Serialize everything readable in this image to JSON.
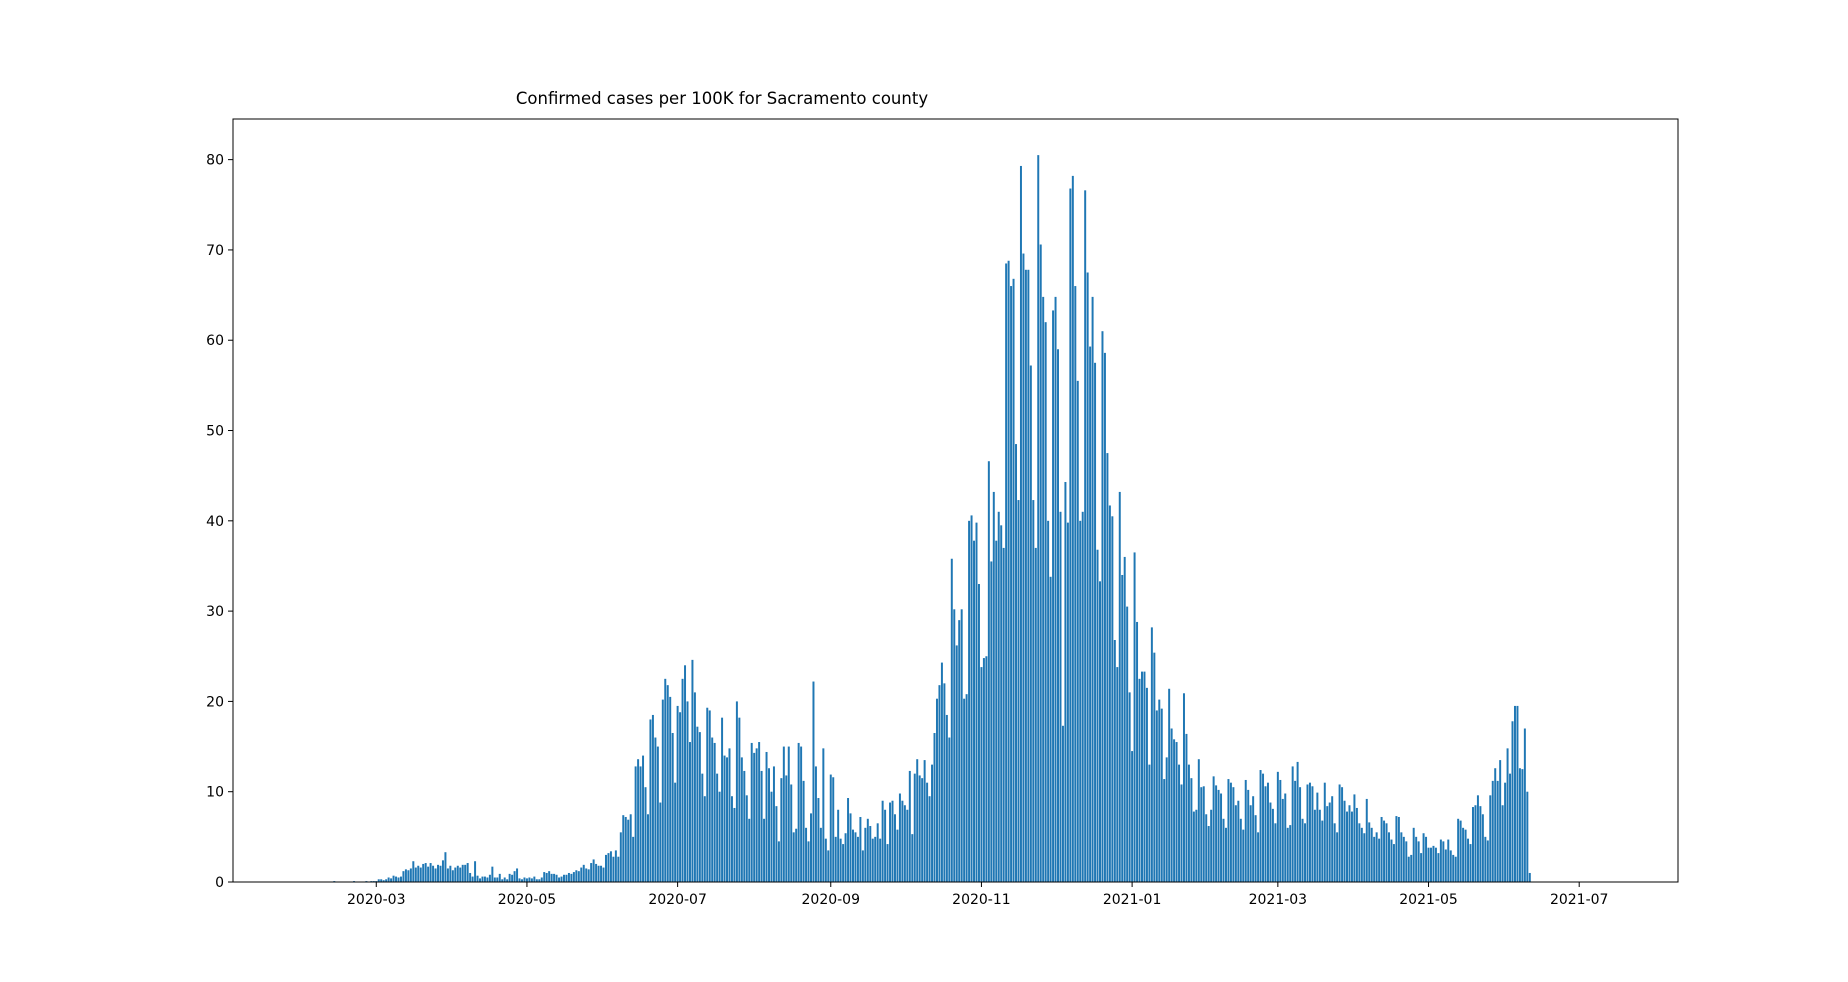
{
  "chart_data": {
    "type": "bar",
    "title": "Confirmed cases per 100K for Sacramento county",
    "xlabel": "",
    "ylabel": "",
    "x_start": "2020-01-22",
    "x_end": "2021-07-20",
    "xlim": [
      "2020-01-03",
      "2021-08-10"
    ],
    "ylim": [
      0,
      84.5
    ],
    "xticks": [
      "2020-03",
      "2020-05",
      "2020-07",
      "2020-09",
      "2020-11",
      "2021-01",
      "2021-03",
      "2021-05",
      "2021-07"
    ],
    "yticks": [
      0,
      10,
      20,
      30,
      40,
      50,
      60,
      70,
      80
    ],
    "bar_color": "#1f77b4",
    "grid": false,
    "legend": "none",
    "values": [
      0,
      0,
      0,
      0,
      0,
      0,
      0,
      0,
      0,
      0,
      0,
      0,
      0,
      0,
      0,
      0,
      0,
      0,
      0,
      0,
      0,
      0,
      0.1,
      0,
      0,
      0,
      0,
      0,
      0,
      0,
      0.1,
      0,
      0,
      0,
      0,
      0.1,
      0,
      0.1,
      0.1,
      0.1,
      0.3,
      0.3,
      0.2,
      0.3,
      0.5,
      0.4,
      0.7,
      0.6,
      0.5,
      0.6,
      1.2,
      1.4,
      1.3,
      1.5,
      2.3,
      1.6,
      1.8,
      1.6,
      2.0,
      2.1,
      1.7,
      2.1,
      1.8,
      1.5,
      1.9,
      1.8,
      2.4,
      3.3,
      1.5,
      1.8,
      1.3,
      1.6,
      1.8,
      1.6,
      1.9,
      1.9,
      2.1,
      1.0,
      0.6,
      2.3,
      0.7,
      0.4,
      0.6,
      0.6,
      0.5,
      0.8,
      1.7,
      0.5,
      0.5,
      0.9,
      0.3,
      0.5,
      0.3,
      0.9,
      0.8,
      1.2,
      1.5,
      0.4,
      0.3,
      0.5,
      0.4,
      0.5,
      0.4,
      0.6,
      0.3,
      0.3,
      0.5,
      1.1,
      1.0,
      1.2,
      0.9,
      0.9,
      0.8,
      0.5,
      0.6,
      0.8,
      0.8,
      1.0,
      0.9,
      1.1,
      1.3,
      1.2,
      1.6,
      1.9,
      1.5,
      1.4,
      2.1,
      2.5,
      2.0,
      1.8,
      1.8,
      1.6,
      3.0,
      3.2,
      3.4,
      2.8,
      3.5,
      2.8,
      5.5,
      7.4,
      7.2,
      6.9,
      7.5,
      5.0,
      12.8,
      13.6,
      12.8,
      14.0,
      10.5,
      7.5,
      18.0,
      18.5,
      16.0,
      15.0,
      8.8,
      20.2,
      22.5,
      21.8,
      20.5,
      16.5,
      11.0,
      19.5,
      18.8,
      22.5,
      24.0,
      20.0,
      15.5,
      24.6,
      21.0,
      17.2,
      16.6,
      12.0,
      9.5,
      19.3,
      19.0,
      16.0,
      15.4,
      12.0,
      10.0,
      18.2,
      14.0,
      13.8,
      14.8,
      9.5,
      8.2,
      20.0,
      18.2,
      13.8,
      12.3,
      9.6,
      7.0,
      15.4,
      14.3,
      14.8,
      15.5,
      12.3,
      7.0,
      14.4,
      12.6,
      10.0,
      12.8,
      8.4,
      4.5,
      11.5,
      15.0,
      11.8,
      15.0,
      10.8,
      5.5,
      5.9,
      15.4,
      15.0,
      11.2,
      6.0,
      4.5,
      7.6,
      22.2,
      12.8,
      9.3,
      6.0,
      14.8,
      4.8,
      3.5,
      11.9,
      11.6,
      5.0,
      8.0,
      4.8,
      4.2,
      5.4,
      9.3,
      7.6,
      5.8,
      5.5,
      5.0,
      7.2,
      3.5,
      6.0,
      7.0,
      6.2,
      4.8,
      5.0,
      6.5,
      4.8,
      9.0,
      8.0,
      4.2,
      8.8,
      9.0,
      7.5,
      5.8,
      9.8,
      9.0,
      8.5,
      8.0,
      12.3,
      5.3,
      12.0,
      13.6,
      11.8,
      11.5,
      13.5,
      11.0,
      9.5,
      13.0,
      16.5,
      20.3,
      21.8,
      24.3,
      22.0,
      18.5,
      16.0,
      35.8,
      30.2,
      26.2,
      29.0,
      30.2,
      20.3,
      20.8,
      40.0,
      40.6,
      37.8,
      39.8,
      33.0,
      23.8,
      24.8,
      25.0,
      46.6,
      35.5,
      43.2,
      37.8,
      41.0,
      39.5,
      37.0,
      68.5,
      68.8,
      66.0,
      66.8,
      48.5,
      42.3,
      79.3,
      69.6,
      67.8,
      67.8,
      57.2,
      42.3,
      37.0,
      80.5,
      70.6,
      64.8,
      62.0,
      40.0,
      33.8,
      63.3,
      64.8,
      59.0,
      41.0,
      17.3,
      44.3,
      39.8,
      76.8,
      78.2,
      66.0,
      55.5,
      40.0,
      41.0,
      76.6,
      67.5,
      59.3,
      64.8,
      57.5,
      36.8,
      33.3,
      61.0,
      58.6,
      47.5,
      41.7,
      40.5,
      26.8,
      23.8,
      43.2,
      34.0,
      36.0,
      30.5,
      21.0,
      14.5,
      36.5,
      28.8,
      22.5,
      23.3,
      23.3,
      21.5,
      13.0,
      28.2,
      25.4,
      19.0,
      20.2,
      19.2,
      11.4,
      13.8,
      21.4,
      17.0,
      15.8,
      15.5,
      13.0,
      10.8,
      20.9,
      16.4,
      13.0,
      11.5,
      7.8,
      8.0,
      13.6,
      10.5,
      10.6,
      7.5,
      6.2,
      8.0,
      11.7,
      10.7,
      10.2,
      9.8,
      7.0,
      6.0,
      11.4,
      11.0,
      10.5,
      8.5,
      9.0,
      7.0,
      5.8,
      11.3,
      10.2,
      8.5,
      9.5,
      7.4,
      5.5,
      12.4,
      12.0,
      10.6,
      11.0,
      8.8,
      8.1,
      6.5,
      12.2,
      11.3,
      9.2,
      9.8,
      6.0,
      6.3,
      12.8,
      11.2,
      13.3,
      10.5,
      7.0,
      6.5,
      10.8,
      11.0,
      10.6,
      8.0,
      9.9,
      8.0,
      6.8,
      11.0,
      8.4,
      8.8,
      9.5,
      6.5,
      5.5,
      10.8,
      10.5,
      9.0,
      7.8,
      8.5,
      7.8,
      9.7,
      8.2,
      6.5,
      6.0,
      5.4,
      9.2,
      6.6,
      6.0,
      5.0,
      5.5,
      4.8,
      7.2,
      6.8,
      6.5,
      5.5,
      4.7,
      4.2,
      7.3,
      7.2,
      5.5,
      5.0,
      4.5,
      2.8,
      3.0,
      6.0,
      5.0,
      4.5,
      3.2,
      5.4,
      5.0,
      3.8,
      3.8,
      4.0,
      3.8,
      3.2,
      4.7,
      4.5,
      3.6,
      4.7,
      3.5,
      3.0,
      2.8,
      7.0,
      6.8,
      6.0,
      5.8,
      4.8,
      4.2,
      8.3,
      8.5,
      9.6,
      8.4,
      7.5,
      5.0,
      4.6,
      9.6,
      11.2,
      12.6,
      11.2,
      13.5,
      8.5,
      11.0,
      14.8,
      12.0,
      17.8,
      19.5,
      19.5,
      12.6,
      12.5,
      17.0,
      10.0,
      1.0
    ]
  }
}
